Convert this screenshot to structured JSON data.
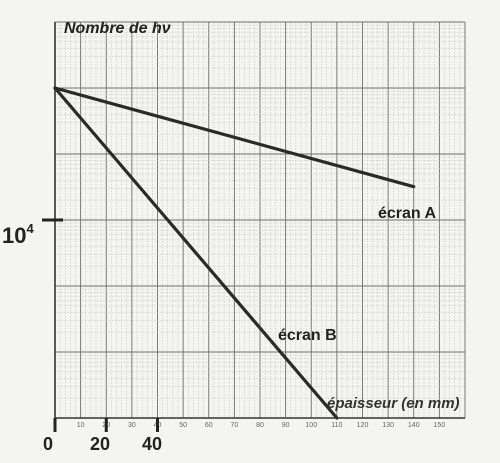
{
  "chart_data": {
    "type": "line",
    "title": "",
    "ylabel": "Nombre de hν",
    "xlabel": "épaisseur (en mm)",
    "xlim": [
      0,
      160
    ],
    "y_scale": "log",
    "ylim": [
      10,
      10000000
    ],
    "x_ticks_major": [
      "0",
      "20",
      "40"
    ],
    "x_ticks_minor": [
      "10",
      "20",
      "30",
      "40",
      "50",
      "60",
      "70",
      "80",
      "90",
      "100",
      "110",
      "120",
      "130",
      "140",
      "150"
    ],
    "y_tick_main": {
      "base": "10",
      "exponent": "4"
    },
    "grid": true,
    "series": [
      {
        "name": "écran A",
        "color": "#2a2a2a",
        "x": [
          0,
          140
        ],
        "y": [
          1000000,
          32000
        ]
      },
      {
        "name": "écran B",
        "color": "#2a2a2a",
        "x": [
          0,
          110
        ],
        "y": [
          1000000,
          10
        ]
      }
    ]
  }
}
